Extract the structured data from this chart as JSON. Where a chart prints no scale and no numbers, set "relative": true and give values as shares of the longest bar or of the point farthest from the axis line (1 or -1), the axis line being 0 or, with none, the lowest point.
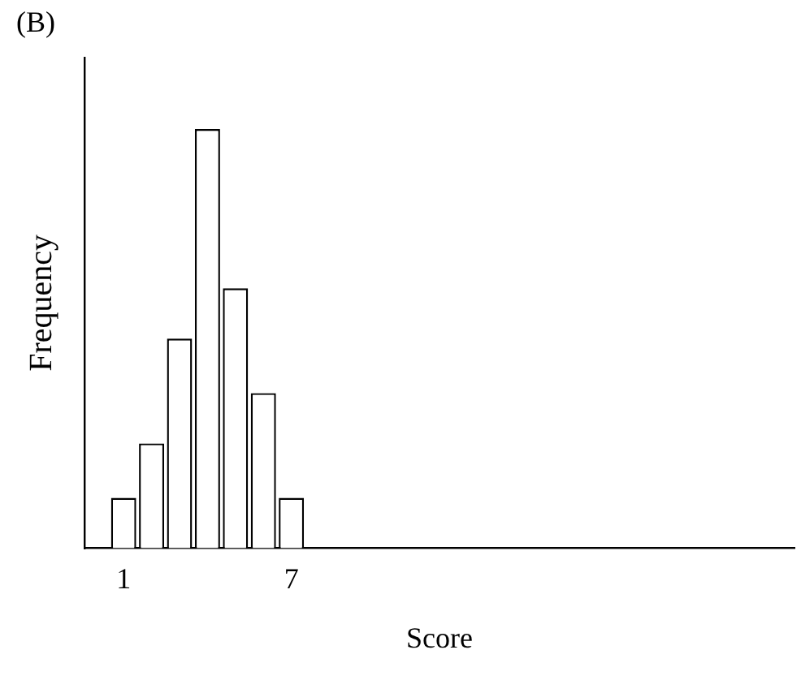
{
  "chart_data": {
    "type": "bar",
    "title": "(B)",
    "xlabel": "Score",
    "ylabel": "Frequency",
    "relative": true,
    "x": [
      1,
      2,
      3,
      4,
      5,
      6,
      7
    ],
    "values": [
      0.12,
      0.25,
      0.5,
      1,
      0.62,
      0.37,
      0.12
    ],
    "color": "#ffffff",
    "xlim": [
      -0.4,
      25
    ],
    "xticks": [
      1,
      7
    ],
    "grid": false,
    "legend": false
  }
}
